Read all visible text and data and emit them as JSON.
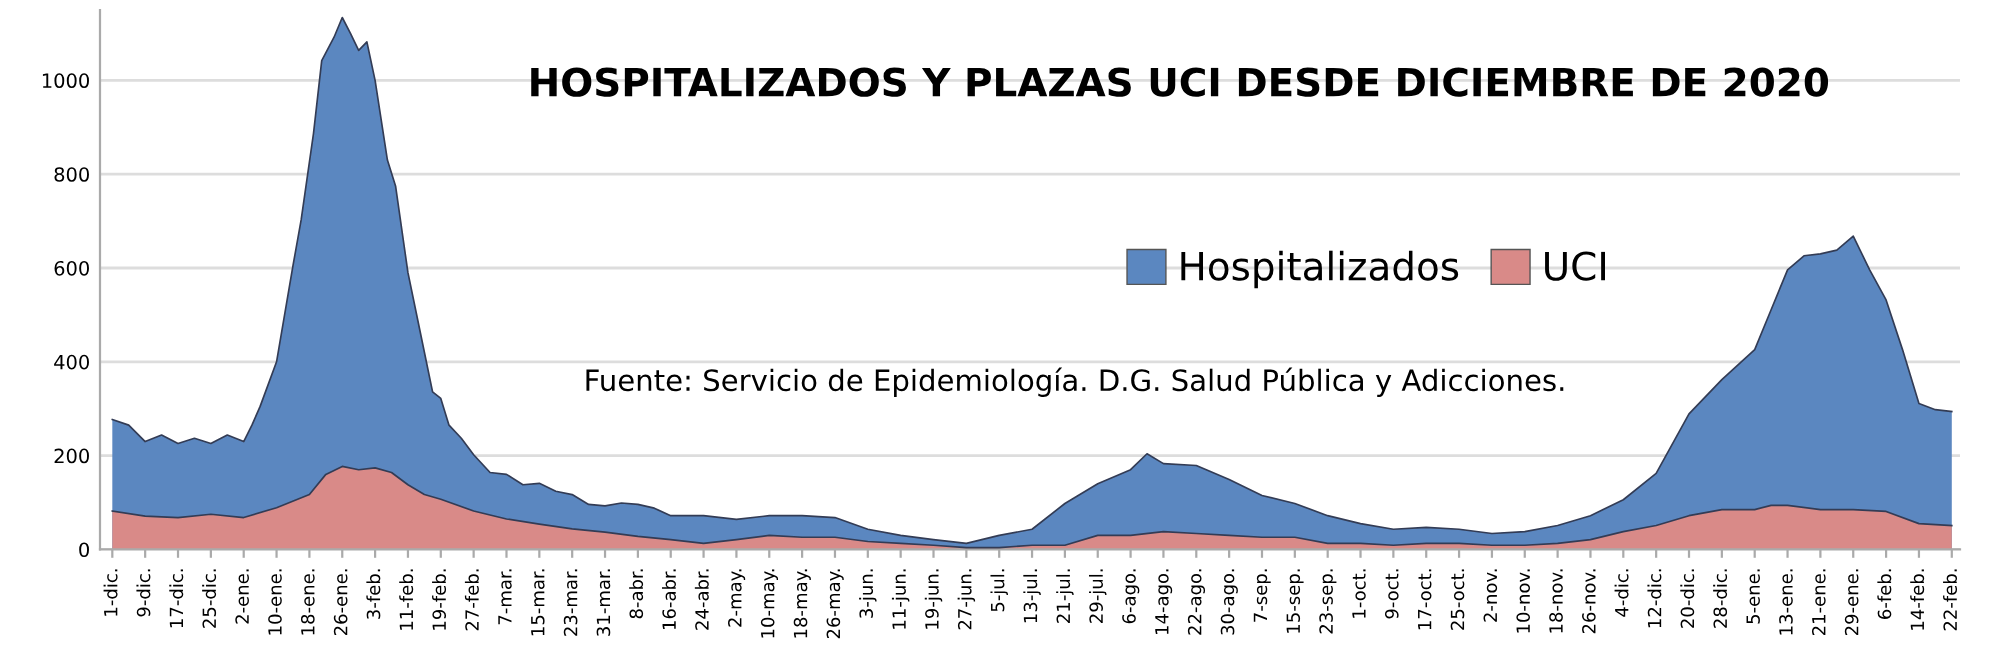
{
  "chart_data": {
    "type": "area",
    "title": "HOSPITALIZADOS Y PLAZAS UCI DESDE DICIEMBRE DE 2020",
    "annotations": [
      "Fuente: Servicio de Epidemiología. D.G. Salud Pública y Adicciones."
    ],
    "series": [
      {
        "name": "Hospitalizados",
        "color": "#5b87c0",
        "x": [
          "2020-12-01",
          "2020-12-05",
          "2020-12-09",
          "2020-12-13",
          "2020-12-17",
          "2020-12-21",
          "2020-12-25",
          "2020-12-29",
          "2021-01-02",
          "2021-01-04",
          "2021-01-06",
          "2021-01-10",
          "2021-01-14",
          "2021-01-16",
          "2021-01-19",
          "2021-01-21",
          "2021-01-24",
          "2021-01-26",
          "2021-01-28",
          "2021-01-30",
          "2021-02-01",
          "2021-02-03",
          "2021-02-06",
          "2021-02-08",
          "2021-02-11",
          "2021-02-14",
          "2021-02-17",
          "2021-02-19",
          "2021-02-21",
          "2021-02-24",
          "2021-02-27",
          "2021-03-03",
          "2021-03-07",
          "2021-03-11",
          "2021-03-15",
          "2021-03-19",
          "2021-03-23",
          "2021-03-27",
          "2021-03-31",
          "2021-04-04",
          "2021-04-08",
          "2021-04-12",
          "2021-04-16",
          "2021-04-24",
          "2021-05-02",
          "2021-05-10",
          "2021-05-18",
          "2021-05-26",
          "2021-06-03",
          "2021-06-11",
          "2021-06-19",
          "2021-06-27",
          "2021-07-05",
          "2021-07-13",
          "2021-07-21",
          "2021-07-29",
          "2021-08-06",
          "2021-08-10",
          "2021-08-14",
          "2021-08-22",
          "2021-08-30",
          "2021-09-07",
          "2021-09-15",
          "2021-09-23",
          "2021-10-01",
          "2021-10-09",
          "2021-10-17",
          "2021-10-25",
          "2021-11-02",
          "2021-11-10",
          "2021-11-18",
          "2021-11-26",
          "2021-12-04",
          "2021-12-12",
          "2021-12-20",
          "2021-12-28",
          "2022-01-05",
          "2022-01-09",
          "2022-01-13",
          "2022-01-17",
          "2022-01-21",
          "2022-01-25",
          "2022-01-29",
          "2022-02-02",
          "2022-02-06",
          "2022-02-10",
          "2022-02-14",
          "2022-02-18",
          "2022-02-22"
        ],
        "values": [
          277,
          265,
          230,
          244,
          226,
          237,
          226,
          244,
          230,
          265,
          305,
          400,
          605,
          703,
          887,
          1042,
          1092,
          1134,
          1100,
          1064,
          1082,
          1000,
          830,
          774,
          590,
          463,
          336,
          322,
          265,
          237,
          202,
          164,
          160,
          138,
          141,
          124,
          117,
          96,
          93,
          99,
          96,
          88,
          72,
          72,
          64,
          72,
          72,
          68,
          43,
          30,
          21,
          13,
          30,
          43,
          98,
          140,
          170,
          204,
          183,
          179,
          149,
          115,
          98,
          72,
          55,
          43,
          47,
          43,
          34,
          38,
          51,
          72,
          106,
          162,
          289,
          362,
          426,
          511,
          596,
          626,
          630,
          638,
          668,
          596,
          532,
          426,
          311,
          298,
          294
        ]
      },
      {
        "name": "UCI",
        "color": "#d98a88",
        "x": [
          "2020-12-01",
          "2020-12-09",
          "2020-12-17",
          "2020-12-25",
          "2021-01-02",
          "2021-01-10",
          "2021-01-18",
          "2021-01-22",
          "2021-01-26",
          "2021-01-30",
          "2021-02-03",
          "2021-02-07",
          "2021-02-11",
          "2021-02-15",
          "2021-02-19",
          "2021-02-27",
          "2021-03-07",
          "2021-03-15",
          "2021-03-23",
          "2021-03-31",
          "2021-04-08",
          "2021-04-16",
          "2021-04-24",
          "2021-05-02",
          "2021-05-10",
          "2021-05-18",
          "2021-05-26",
          "2021-06-03",
          "2021-06-11",
          "2021-06-19",
          "2021-06-27",
          "2021-07-05",
          "2021-07-13",
          "2021-07-21",
          "2021-07-29",
          "2021-08-06",
          "2021-08-14",
          "2021-08-22",
          "2021-08-30",
          "2021-09-07",
          "2021-09-15",
          "2021-09-23",
          "2021-10-01",
          "2021-10-09",
          "2021-10-17",
          "2021-10-25",
          "2021-11-02",
          "2021-11-10",
          "2021-11-18",
          "2021-11-26",
          "2021-12-04",
          "2021-12-12",
          "2021-12-20",
          "2021-12-28",
          "2022-01-05",
          "2022-01-09",
          "2022-01-13",
          "2022-01-21",
          "2022-01-29",
          "2022-02-06",
          "2022-02-14",
          "2022-02-22"
        ],
        "values": [
          82,
          71,
          68,
          75,
          68,
          89,
          117,
          160,
          177,
          170,
          174,
          164,
          138,
          117,
          107,
          82,
          65,
          54,
          44,
          37,
          28,
          21,
          13,
          21,
          30,
          26,
          26,
          17,
          13,
          9,
          4,
          4,
          9,
          9,
          30,
          30,
          38,
          34,
          30,
          26,
          26,
          13,
          13,
          9,
          13,
          13,
          9,
          9,
          13,
          21,
          38,
          51,
          72,
          85,
          85,
          94,
          94,
          85,
          85,
          81,
          55,
          51
        ]
      }
    ],
    "xlim": [
      "2020-11-28",
      "2022-02-24"
    ],
    "xticks": [
      {
        "value": "2020-12-01",
        "label": "1-dic."
      },
      {
        "value": "2020-12-09",
        "label": "9-dic."
      },
      {
        "value": "2020-12-17",
        "label": "17-dic."
      },
      {
        "value": "2020-12-25",
        "label": "25-dic."
      },
      {
        "value": "2021-01-02",
        "label": "2-ene."
      },
      {
        "value": "2021-01-10",
        "label": "10-ene."
      },
      {
        "value": "2021-01-18",
        "label": "18-ene."
      },
      {
        "value": "2021-01-26",
        "label": "26-ene."
      },
      {
        "value": "2021-02-03",
        "label": "3-feb."
      },
      {
        "value": "2021-02-11",
        "label": "11-feb."
      },
      {
        "value": "2021-02-19",
        "label": "19-feb."
      },
      {
        "value": "2021-02-27",
        "label": "27-feb."
      },
      {
        "value": "2021-03-07",
        "label": "7-mar."
      },
      {
        "value": "2021-03-15",
        "label": "15-mar."
      },
      {
        "value": "2021-03-23",
        "label": "23-mar."
      },
      {
        "value": "2021-03-31",
        "label": "31-mar."
      },
      {
        "value": "2021-04-08",
        "label": "8-abr."
      },
      {
        "value": "2021-04-16",
        "label": "16-abr."
      },
      {
        "value": "2021-04-24",
        "label": "24-abr."
      },
      {
        "value": "2021-05-02",
        "label": "2-may."
      },
      {
        "value": "2021-05-10",
        "label": "10-may."
      },
      {
        "value": "2021-05-18",
        "label": "18-may."
      },
      {
        "value": "2021-05-26",
        "label": "26-may."
      },
      {
        "value": "2021-06-03",
        "label": "3-jun."
      },
      {
        "value": "2021-06-11",
        "label": "11-jun."
      },
      {
        "value": "2021-06-19",
        "label": "19-jun."
      },
      {
        "value": "2021-06-27",
        "label": "27-jun."
      },
      {
        "value": "2021-07-05",
        "label": "5-jul."
      },
      {
        "value": "2021-07-13",
        "label": "13-jul."
      },
      {
        "value": "2021-07-21",
        "label": "21-jul."
      },
      {
        "value": "2021-07-29",
        "label": "29-jul."
      },
      {
        "value": "2021-08-06",
        "label": "6-ago."
      },
      {
        "value": "2021-08-14",
        "label": "14-ago."
      },
      {
        "value": "2021-08-22",
        "label": "22-ago."
      },
      {
        "value": "2021-08-30",
        "label": "30-ago."
      },
      {
        "value": "2021-09-07",
        "label": "7-sep."
      },
      {
        "value": "2021-09-15",
        "label": "15-sep."
      },
      {
        "value": "2021-09-23",
        "label": "23-sep."
      },
      {
        "value": "2021-10-01",
        "label": "1-oct."
      },
      {
        "value": "2021-10-09",
        "label": "9-oct."
      },
      {
        "value": "2021-10-17",
        "label": "17-oct."
      },
      {
        "value": "2021-10-25",
        "label": "25-oct."
      },
      {
        "value": "2021-11-02",
        "label": "2-nov."
      },
      {
        "value": "2021-11-10",
        "label": "10-nov."
      },
      {
        "value": "2021-11-18",
        "label": "18-nov."
      },
      {
        "value": "2021-11-26",
        "label": "26-nov."
      },
      {
        "value": "2021-12-04",
        "label": "4-dic."
      },
      {
        "value": "2021-12-12",
        "label": "12-dic."
      },
      {
        "value": "2021-12-20",
        "label": "20-dic."
      },
      {
        "value": "2021-12-28",
        "label": "28-dic."
      },
      {
        "value": "2022-01-05",
        "label": "5-ene."
      },
      {
        "value": "2022-01-13",
        "label": "13-ene."
      },
      {
        "value": "2022-01-21",
        "label": "21-ene."
      },
      {
        "value": "2022-01-29",
        "label": "29-ene."
      },
      {
        "value": "2022-02-06",
        "label": "6-feb."
      },
      {
        "value": "2022-02-14",
        "label": "14-feb."
      },
      {
        "value": "2022-02-22",
        "label": "22-feb."
      }
    ],
    "ylim": [
      0,
      1150
    ],
    "yticks": [
      0,
      200,
      400,
      600,
      800,
      1000
    ],
    "grid": "y",
    "legend": "center right"
  }
}
